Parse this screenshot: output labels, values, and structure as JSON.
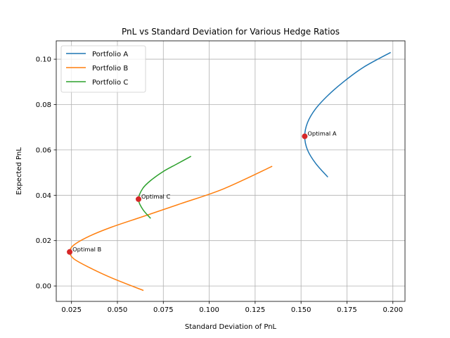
{
  "chart_data": {
    "type": "line",
    "title": "PnL vs Standard Deviation for Various Hedge Ratios",
    "xlabel": "Standard Deviation of PnL",
    "ylabel": "Expected PnL",
    "xlim": [
      0.0167,
      0.2066
    ],
    "ylim": [
      -0.0068,
      0.1081
    ],
    "xticks": [
      0.025,
      0.05,
      0.075,
      0.1,
      0.125,
      0.15,
      0.175,
      0.2
    ],
    "xtick_labels": [
      "0.025",
      "0.050",
      "0.075",
      "0.100",
      "0.125",
      "0.150",
      "0.175",
      "0.200"
    ],
    "yticks": [
      0.0,
      0.02,
      0.04,
      0.06,
      0.08,
      0.1
    ],
    "ytick_labels": [
      "0.00",
      "0.02",
      "0.04",
      "0.06",
      "0.08",
      "0.10"
    ],
    "grid": true,
    "legend_position": "top-left",
    "series": [
      {
        "name": "Portfolio A",
        "color": "#1f77b4",
        "points": [
          [
            0.1646,
            0.048
          ],
          [
            0.158,
            0.054
          ],
          [
            0.1535,
            0.06
          ],
          [
            0.152,
            0.066
          ],
          [
            0.1535,
            0.072
          ],
          [
            0.1578,
            0.078
          ],
          [
            0.1646,
            0.084
          ],
          [
            0.1731,
            0.09
          ],
          [
            0.1841,
            0.0965
          ],
          [
            0.1988,
            0.103
          ]
        ]
      },
      {
        "name": "Portfolio B",
        "color": "#ff7f0e",
        "points": [
          [
            0.0642,
            -0.002
          ],
          [
            0.047,
            0.0035
          ],
          [
            0.0343,
            0.0083
          ],
          [
            0.0262,
            0.012
          ],
          [
            0.024,
            0.015
          ],
          [
            0.0262,
            0.018
          ],
          [
            0.0343,
            0.0218
          ],
          [
            0.047,
            0.026
          ],
          [
            0.0642,
            0.0307
          ],
          [
            0.0845,
            0.0363
          ],
          [
            0.1077,
            0.0428
          ],
          [
            0.1343,
            0.0528
          ]
        ]
      },
      {
        "name": "Portfolio C",
        "color": "#2ca02c",
        "points": [
          [
            0.0681,
            0.0298
          ],
          [
            0.0638,
            0.0338
          ],
          [
            0.0615,
            0.0383
          ],
          [
            0.0638,
            0.043
          ],
          [
            0.0681,
            0.0465
          ],
          [
            0.075,
            0.0505
          ],
          [
            0.0824,
            0.0538
          ],
          [
            0.0901,
            0.0572
          ]
        ]
      }
    ],
    "optimal_points": [
      {
        "label": "Optimal A",
        "x": 0.152,
        "y": 0.066,
        "color": "#d62728"
      },
      {
        "label": "Optimal B",
        "x": 0.024,
        "y": 0.015,
        "color": "#d62728"
      },
      {
        "label": "Optimal C",
        "x": 0.0615,
        "y": 0.0383,
        "color": "#d62728"
      }
    ]
  }
}
